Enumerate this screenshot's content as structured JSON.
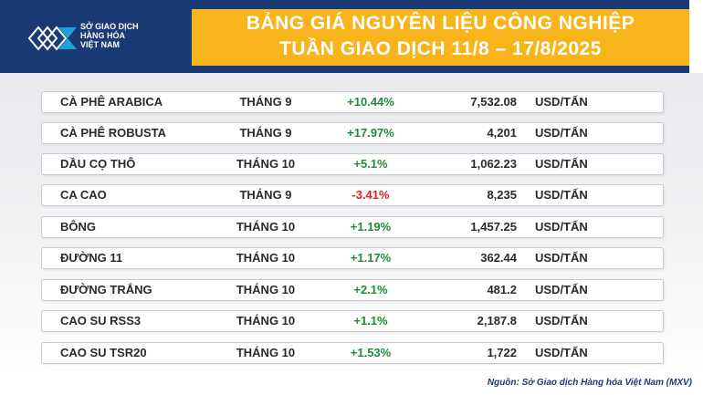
{
  "header": {
    "logo_lines": [
      "SỞ GIAO DỊCH",
      "HÀNG HÓA",
      "VIỆT NAM"
    ],
    "title_line1": "BẢNG GIÁ NGUYÊN LIỆU CÔNG NGHIỆP",
    "title_line2": "TUẦN GIAO DỊCH 11/8 – 17/8/2025"
  },
  "colors": {
    "navy": "#1a3a75",
    "gold": "#f7b51b",
    "positive": "#1e8c3a",
    "negative": "#d42525"
  },
  "rows": [
    {
      "name": "CÀ PHÊ ARABICA",
      "month": "THÁNG 9",
      "change": "+10.44%",
      "price": "7,532.08",
      "unit": "USD/TẤN",
      "direction": "up"
    },
    {
      "name": "CÀ PHÊ ROBUSTA",
      "month": "THÁNG 9",
      "change": "+17.97%",
      "price": "4,201",
      "unit": "USD/TẤN",
      "direction": "up"
    },
    {
      "name": "DẦU CỌ THÔ",
      "month": "THÁNG 10",
      "change": "+5.1%",
      "price": "1,062.23",
      "unit": "USD/TẤN",
      "direction": "up"
    },
    {
      "name": "CA CAO",
      "month": "THÁNG 9",
      "change": "-3.41%",
      "price": "8,235",
      "unit": "USD/TẤN",
      "direction": "down"
    },
    {
      "name": "BÔNG",
      "month": "THÁNG 10",
      "change": "+1.19%",
      "price": "1,457.25",
      "unit": "USD/TẤN",
      "direction": "up"
    },
    {
      "name": "ĐƯỜNG 11",
      "month": "THÁNG 10",
      "change": "+1.17%",
      "price": "362.44",
      "unit": "USD/TẤN",
      "direction": "up"
    },
    {
      "name": "ĐƯỜNG TRẮNG",
      "month": "THÁNG 10",
      "change": "+2.1%",
      "price": "481.2",
      "unit": "USD/TẤN",
      "direction": "up"
    },
    {
      "name": "CAO SU RSS3",
      "month": "THÁNG 10",
      "change": "+1.1%",
      "price": "2,187.8",
      "unit": "USD/TẤN",
      "direction": "up"
    },
    {
      "name": "CAO SU TSR20",
      "month": "THÁNG 10",
      "change": "+1.53%",
      "price": "1,722",
      "unit": "USD/TẤN",
      "direction": "up"
    }
  ],
  "source": "Nguồn: Sở Giao dịch Hàng hóa Việt Nam (MXV)"
}
